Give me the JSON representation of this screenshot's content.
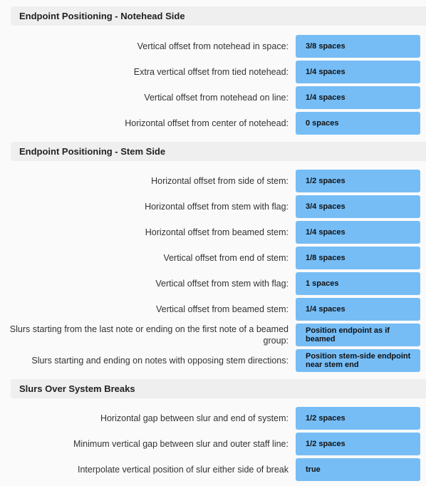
{
  "sections": [
    {
      "title": "Endpoint Positioning - Notehead Side",
      "rows": [
        {
          "label": "Vertical offset from notehead in space:",
          "value": "3/8 spaces"
        },
        {
          "label": "Extra vertical offset from tied notehead:",
          "value": "1/4 spaces"
        },
        {
          "label": "Vertical offset from notehead on line:",
          "value": "1/4 spaces"
        },
        {
          "label": "Horizontal offset from center of notehead:",
          "value": "0 spaces"
        }
      ]
    },
    {
      "title": "Endpoint Positioning - Stem Side",
      "rows": [
        {
          "label": "Horizontal offset from side of stem:",
          "value": "1/2 spaces"
        },
        {
          "label": "Horizontal offset from stem with flag:",
          "value": "3/4 spaces"
        },
        {
          "label": "Horizontal offset from beamed stem:",
          "value": "1/4 spaces"
        },
        {
          "label": "Vertical offset from end of stem:",
          "value": "1/8 spaces"
        },
        {
          "label": "Vertical offset from stem with flag:",
          "value": "1 spaces"
        },
        {
          "label": "Vertical offset from beamed stem:",
          "value": "1/4 spaces"
        },
        {
          "label": "Slurs starting from the last note or ending on the first note of a beamed group:",
          "value": "Position endpoint as if beamed"
        },
        {
          "label": "Slurs starting and ending on notes with opposing stem directions:",
          "value": "Position stem-side endpoint near stem end"
        }
      ]
    },
    {
      "title": "Slurs Over System Breaks",
      "rows": [
        {
          "label": "Horizontal gap between slur and end of system:",
          "value": "1/2 spaces"
        },
        {
          "label": "Minimum vertical gap between slur and outer staff line:",
          "value": "1/2 spaces"
        },
        {
          "label": "Interpolate vertical position of slur either side of break",
          "value": "true"
        }
      ]
    }
  ]
}
